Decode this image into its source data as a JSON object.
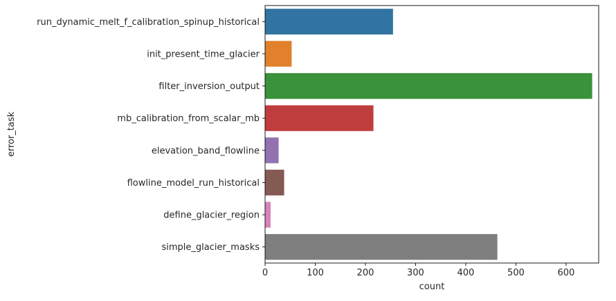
{
  "chart_data": {
    "type": "bar",
    "orientation": "horizontal",
    "categories": [
      "run_dynamic_melt_f_calibration_spinup_historical",
      "init_present_time_glacier",
      "filter_inversion_output",
      "mb_calibration_from_scalar_mb",
      "elevation_band_flowline",
      "flowline_model_run_historical",
      "define_glacier_region",
      "simple_glacier_masks"
    ],
    "values": [
      255,
      53,
      652,
      216,
      27,
      38,
      11,
      463
    ],
    "colors": [
      "#3274a1",
      "#e1812c",
      "#3a923a",
      "#c03d3e",
      "#9372b2",
      "#845b53",
      "#d684bd",
      "#7f7f7f"
    ],
    "xlabel": "count",
    "ylabel": "error_task",
    "xlim": [
      0,
      665
    ],
    "xticks": [
      0,
      100,
      200,
      300,
      400,
      500,
      600
    ],
    "xtick_labels": [
      "0",
      "100",
      "200",
      "300",
      "400",
      "500",
      "600"
    ],
    "grid": false,
    "legend": "none"
  }
}
